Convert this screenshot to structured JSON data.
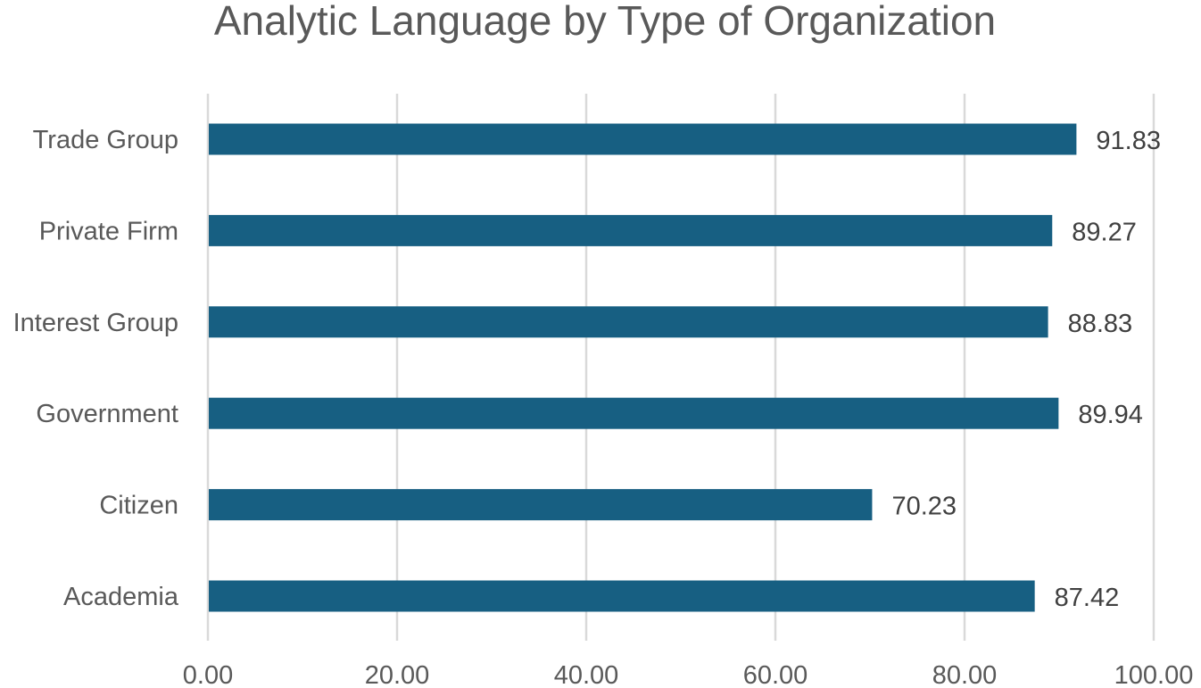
{
  "chart_data": {
    "type": "bar",
    "orientation": "horizontal",
    "title": "Analytic Language by Type of Organization",
    "xlabel": "",
    "ylabel": "",
    "categories": [
      "Trade Group",
      "Private Firm",
      "Interest Group",
      "Government",
      "Citizen",
      "Academia"
    ],
    "values": [
      91.83,
      89.27,
      88.83,
      89.94,
      70.23,
      87.42
    ],
    "value_labels": [
      "91.83",
      "89.27",
      "88.83",
      "89.94",
      "70.23",
      "87.42"
    ],
    "xlim": [
      0,
      100
    ],
    "ticks": [
      0,
      20,
      40,
      60,
      80,
      100
    ],
    "tick_labels": [
      "0.00",
      "20.00",
      "40.00",
      "60.00",
      "80.00",
      "100.00"
    ],
    "grid": "vertical",
    "legend": "none",
    "bar_color": "#175F82"
  }
}
